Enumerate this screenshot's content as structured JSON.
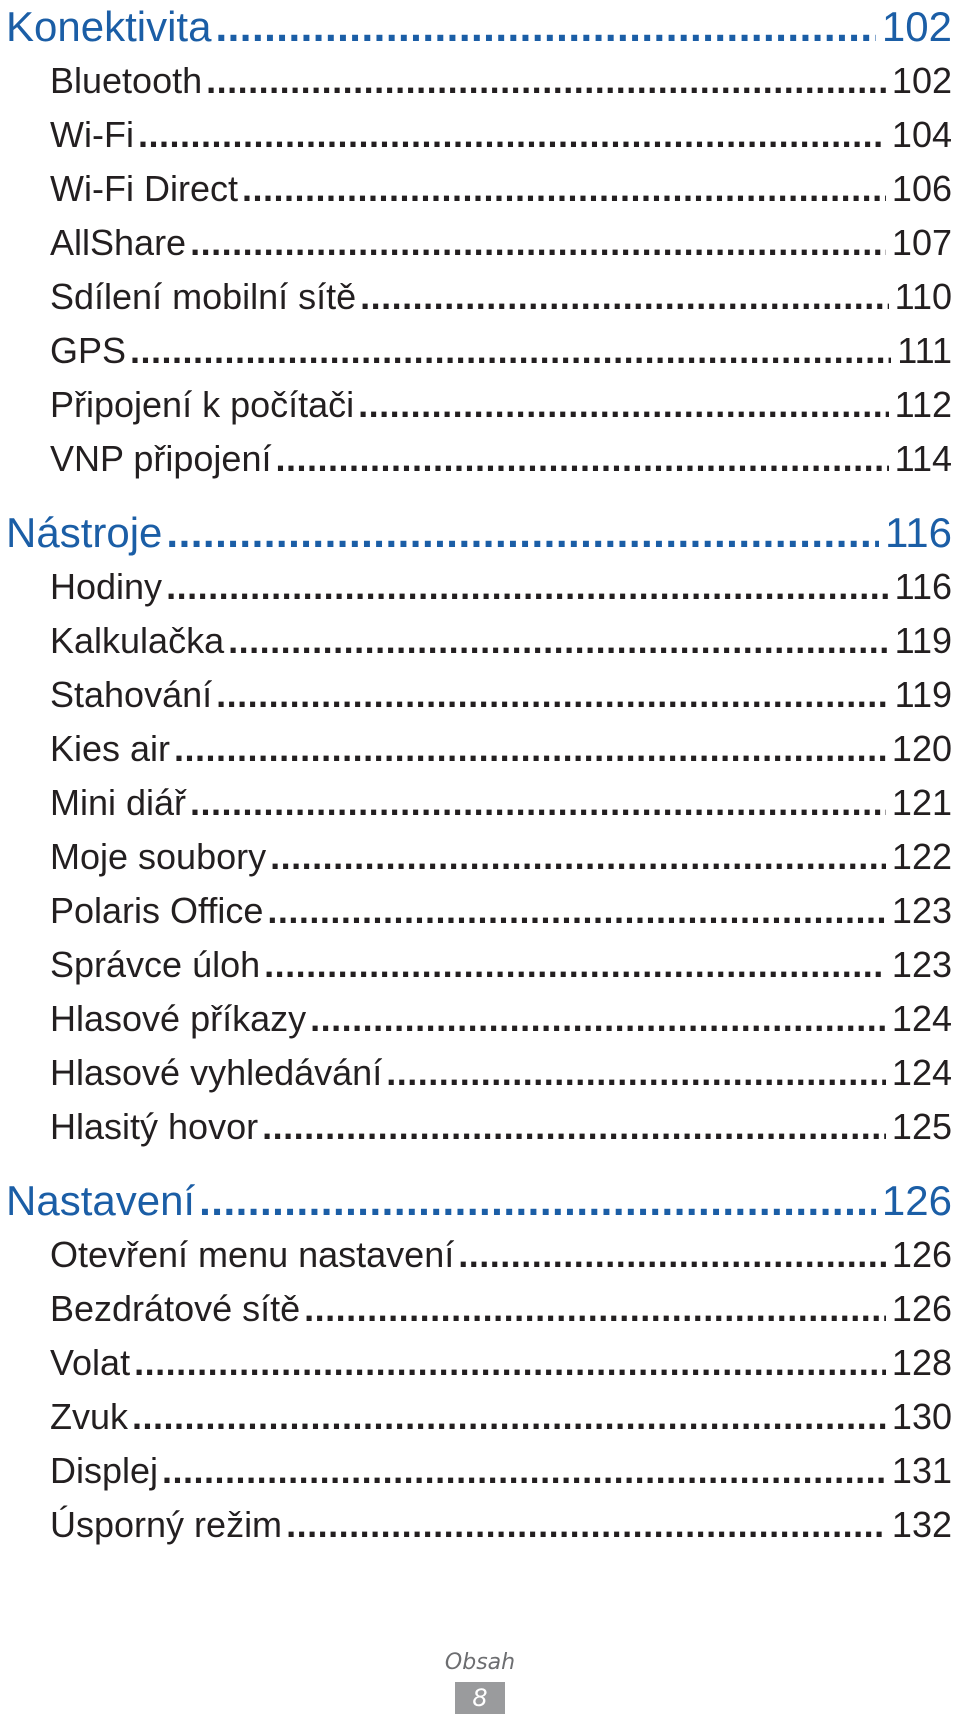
{
  "toc": {
    "sections": [
      {
        "title": "Konektivita",
        "page": "102",
        "items": [
          {
            "title": "Bluetooth",
            "page": "102"
          },
          {
            "title": "Wi-Fi",
            "page": "104"
          },
          {
            "title": "Wi-Fi Direct",
            "page": "106"
          },
          {
            "title": "AllShare",
            "page": "107"
          },
          {
            "title": "Sdílení mobilní sítě",
            "page": "110"
          },
          {
            "title": "GPS",
            "page": "111"
          },
          {
            "title": "Připojení k počítači",
            "page": "112"
          },
          {
            "title": "VNP připojení",
            "page": "114"
          }
        ]
      },
      {
        "title": "Nástroje",
        "page": "116",
        "items": [
          {
            "title": "Hodiny",
            "page": "116"
          },
          {
            "title": "Kalkulačka",
            "page": "119"
          },
          {
            "title": "Stahování",
            "page": "119"
          },
          {
            "title": "Kies air",
            "page": "120"
          },
          {
            "title": "Mini diář",
            "page": "121"
          },
          {
            "title": "Moje soubory",
            "page": "122"
          },
          {
            "title": "Polaris Office",
            "page": "123"
          },
          {
            "title": "Správce úloh",
            "page": "123"
          },
          {
            "title": "Hlasové příkazy",
            "page": "124"
          },
          {
            "title": "Hlasové vyhledávání",
            "page": "124"
          },
          {
            "title": "Hlasitý hovor",
            "page": "125"
          }
        ]
      },
      {
        "title": "Nastavení",
        "page": "126",
        "items": [
          {
            "title": "Otevření menu nastavení",
            "page": "126"
          },
          {
            "title": "Bezdrátové sítě",
            "page": "126"
          },
          {
            "title": "Volat",
            "page": "128"
          },
          {
            "title": "Zvuk",
            "page": "130"
          },
          {
            "title": "Displej",
            "page": "131"
          },
          {
            "title": "Úsporný režim",
            "page": "132"
          }
        ]
      }
    ]
  },
  "footer": {
    "label": "Obsah",
    "page_number": "8"
  },
  "colors": {
    "heading": "#1b5ea6",
    "text": "#231f20",
    "footer_label": "#6d6e71",
    "footer_badge": "#9a9b9d"
  }
}
